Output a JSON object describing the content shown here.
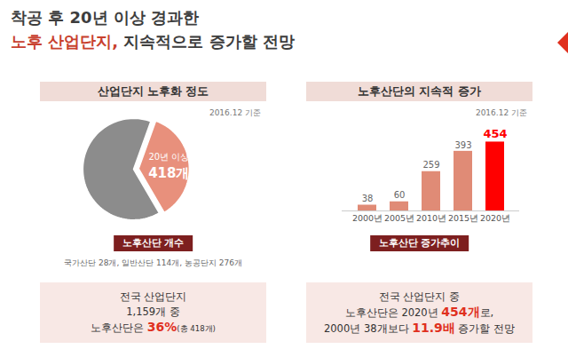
{
  "slide": {
    "title": [
      [
        "착공 후 20년 이상 경과한"
      ],
      [
        {
          "text": "노후 산업단지,",
          "highlight": true
        },
        " 지속적으로 증가할 전망"
      ]
    ]
  },
  "chart_data": [
    {
      "type": "pie",
      "title": "산업단지 노후화 정도",
      "subtitle": "2016.12 기준",
      "categories": [
        "20년 이상",
        null
      ],
      "values": [
        418,
        741
      ],
      "value_labels": [
        "418개",
        null
      ],
      "data_labels": true,
      "colors": [
        "#e8907c",
        "#8c8c8c"
      ],
      "caption": "노후산단 개수",
      "note": "국가산단 28개, 일반산단 114개, 농공단지 276개",
      "summary": [
        [
          "전국 산업단지"
        ],
        [
          "1,159개 중"
        ],
        [
          "노후산단은 ",
          {
            "text": "36%",
            "highlight": true
          },
          {
            "text": "(총 418개)",
            "small": true
          }
        ]
      ]
    },
    {
      "type": "bar",
      "title": "노후산단의 지속적 증가",
      "subtitle": "2016.12 기준",
      "categories": [
        "2000년",
        "2005년",
        "2010년",
        "2015년",
        "2020년"
      ],
      "values": [
        38,
        60,
        259,
        393,
        454
      ],
      "colors": [
        "#e08b76",
        "#e08b76",
        "#e08b76",
        "#e08b76",
        "#ff0000"
      ],
      "ylim": [
        0,
        480
      ],
      "data_labels": true,
      "tick_labels": "x",
      "caption": "노후산단 증가추이",
      "summary": [
        [
          "전국 산업단지 중"
        ],
        [
          "노후산단은 2020년 ",
          {
            "text": "454개",
            "highlight": true
          },
          "로,"
        ],
        [
          "2000년 38개보다 ",
          {
            "text": "11.9배",
            "highlight": true
          },
          " 증가할 전망"
        ]
      ]
    }
  ]
}
